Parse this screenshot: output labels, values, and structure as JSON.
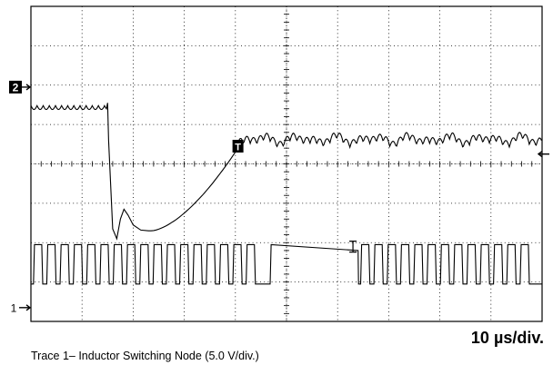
{
  "chart_data": {
    "type": "line",
    "title": "",
    "grid": true,
    "divisions": {
      "x": 10,
      "y": 8,
      "minor_per_div": 5
    },
    "time_per_div": "10 µs/div.",
    "channel_markers": [
      {
        "label": "2",
        "side": "left"
      },
      {
        "label": "1",
        "side": "left"
      }
    ],
    "trigger_marker": "T",
    "series": [
      {
        "channel": "2",
        "x_div": [
          0,
          0.3,
          0.6,
          0.9,
          1.2,
          1.5,
          1.8,
          2.1,
          2.4,
          2.7,
          3.0,
          3.3,
          3.6,
          3.9,
          4.2,
          4.5,
          4.8,
          5.1,
          5.4,
          5.7,
          6.0,
          6.3,
          6.6,
          6.9,
          7.2,
          7.5,
          7.8,
          8.1,
          8.4,
          8.7,
          9.0,
          9.3,
          9.6,
          10.0
        ],
        "level_div": [
          5.5,
          5.48,
          5.52,
          5.49,
          5.5,
          2.1,
          2.3,
          2.5,
          3.1,
          4.1,
          4.6,
          4.55,
          4.65,
          4.6,
          4.6,
          4.55,
          4.62,
          4.58,
          4.6,
          4.63,
          4.57,
          4.6,
          4.62,
          4.58,
          4.6,
          4.57,
          4.61,
          4.6,
          4.63,
          4.58,
          4.6,
          4.59,
          4.62,
          4.6
        ]
      },
      {
        "channel": "1",
        "pattern": "square pulse train",
        "high_div": 1.95,
        "low_div": 0.95,
        "gap_start_div": 4.7,
        "gap_end_div": 6.4
      }
    ]
  },
  "labels": {
    "timebase": "10 µs/div.",
    "caption": "Trace 1– Inductor Switching Node (5.0 V/div.)"
  },
  "colors": {
    "trace": "#000000",
    "grid": "#000000",
    "background": "#ffffff"
  }
}
